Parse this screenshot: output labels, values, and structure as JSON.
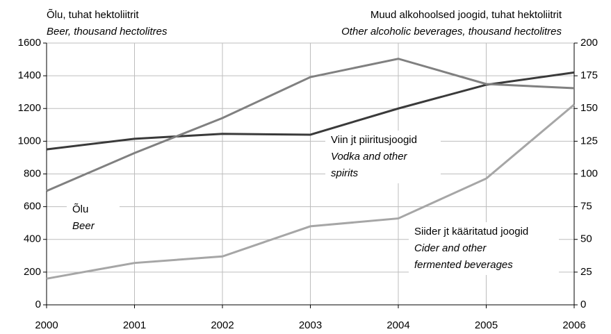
{
  "chart_data": {
    "type": "line",
    "y_axis_title": [
      "Õlu, tuhat hektoliitrit",
      "Beer, thousand hectolitres"
    ],
    "y2_axis_title": [
      "Muud alkohoolsed joogid, tuhat hektoliitrit",
      "Other alcoholic beverages, thousand hectolitres"
    ],
    "categories": [
      "2000",
      "2001",
      "2002",
      "2003",
      "2004",
      "2005",
      "2006"
    ],
    "series": [
      {
        "name": [
          "Õlu",
          "Beer"
        ],
        "color": "#3a3a3a",
        "values": [
          950,
          1015,
          1045,
          1040,
          1200,
          1345,
          1420
        ]
      },
      {
        "name": [
          "Viin jt piiritusjoogid",
          "Vodka and other",
          "spirits"
        ],
        "color": "#808080",
        "axis": "y2",
        "values": [
          87,
          116,
          142.7,
          174,
          188,
          168.7,
          165.5
        ]
      },
      {
        "name": [
          "Siider jt kääritatud joogid",
          "Cider and other",
          "fermented beverages"
        ],
        "color": "#a6a6a6",
        "axis": "y2",
        "values": [
          20,
          32,
          37,
          60,
          66,
          96.5,
          153
        ]
      }
    ],
    "ylim": [
      0,
      1600
    ],
    "yticks": [
      0,
      200,
      400,
      600,
      800,
      1000,
      1200,
      1400,
      1600
    ],
    "y2lim": [
      0,
      200
    ],
    "y2ticks": [
      0,
      25,
      50,
      75,
      100,
      125,
      150,
      175,
      200
    ],
    "grid": true
  }
}
